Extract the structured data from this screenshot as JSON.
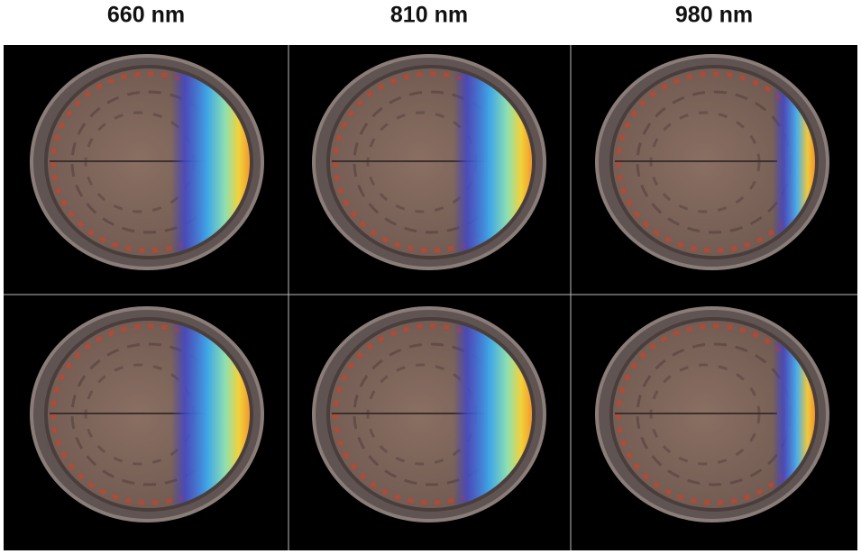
{
  "columns": [
    {
      "label": "660 nm"
    },
    {
      "label": "810 nm"
    },
    {
      "label": "980 nm"
    }
  ]
}
